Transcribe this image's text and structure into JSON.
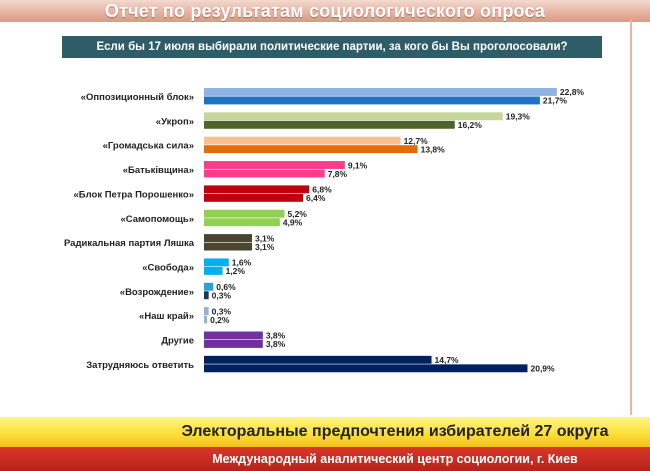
{
  "header": {
    "title": "Отчет по результатам социологического опроса",
    "question": "Если бы 17 июля выбирали политические партии, за кого бы Вы проголосовали?"
  },
  "footer": {
    "title": "Электоральные предпочтения избирателей 27 округа",
    "subtitle": "Международный аналитический центр социологии, г. Киев"
  },
  "chart_data": {
    "type": "bar",
    "orientation": "horizontal",
    "title": "Если бы 17 июля выбирали политические партии, за кого бы Вы проголосовали?",
    "xlim": [
      0,
      23
    ],
    "grid": false,
    "legend": "none",
    "unit": "%",
    "categories": [
      {
        "label": "«Оппозиционный блок»",
        "values": [
          22.8,
          21.7
        ],
        "value_labels": [
          "22,8%",
          "21,7%"
        ],
        "colors": [
          "#8fb4e3",
          "#1f73c4"
        ]
      },
      {
        "label": "«Укроп»",
        "values": [
          19.3,
          16.2
        ],
        "value_labels": [
          "19,3%",
          "16,2%"
        ],
        "colors": [
          "#c4d79b",
          "#4f6228"
        ]
      },
      {
        "label": "«Громадська сила»",
        "values": [
          12.7,
          13.8
        ],
        "value_labels": [
          "12,7%",
          "13,8%"
        ],
        "colors": [
          "#fac090",
          "#e46c0a"
        ]
      },
      {
        "label": "«Батьківщина»",
        "values": [
          9.1,
          7.8
        ],
        "value_labels": [
          "9,1%",
          "7,8%"
        ],
        "colors": [
          "#ff3b8d",
          "#ff3b8d"
        ]
      },
      {
        "label": "«Блок Петра Порошенко»",
        "values": [
          6.8,
          6.4
        ],
        "value_labels": [
          "6,8%",
          "6,4%"
        ],
        "colors": [
          "#c0000f",
          "#c0000f"
        ]
      },
      {
        "label": "«Самопомощь»",
        "values": [
          5.2,
          4.9
        ],
        "value_labels": [
          "5,2%",
          "4,9%"
        ],
        "colors": [
          "#92d050",
          "#92d050"
        ]
      },
      {
        "label": "Радикальная партия Ляшка",
        "values": [
          3.1,
          3.1
        ],
        "value_labels": [
          "3,1%",
          "3,1%"
        ],
        "colors": [
          "#4a4531",
          "#4a4531"
        ]
      },
      {
        "label": "«Свобода»",
        "values": [
          1.6,
          1.2
        ],
        "value_labels": [
          "1,6%",
          "1,2%"
        ],
        "colors": [
          "#00b0f0",
          "#00b0f0"
        ]
      },
      {
        "label": "«Возрождение»",
        "values": [
          0.6,
          0.3
        ],
        "value_labels": [
          "0,6%",
          "0,3%"
        ],
        "colors": [
          "#2e9fd8",
          "#17375e"
        ]
      },
      {
        "label": "«Наш край»",
        "values": [
          0.3,
          0.2
        ],
        "value_labels": [
          "0,3%",
          "0,2%"
        ],
        "colors": [
          "#95b3d7",
          "#95b3d7"
        ]
      },
      {
        "label": "Другие",
        "values": [
          3.8,
          3.8
        ],
        "value_labels": [
          "3,8%",
          "3,8%"
        ],
        "colors": [
          "#7030a0",
          "#7030a0"
        ]
      },
      {
        "label": "Затрудняюсь ответить",
        "values": [
          14.7,
          20.9
        ],
        "value_labels": [
          "14,7%",
          "20,9%"
        ],
        "colors": [
          "#002060",
          "#002060"
        ]
      }
    ]
  },
  "colors": {
    "banner": "#e7b3a3",
    "question_bar": "#2f5d67",
    "footer_yellow": "#fcdf3a",
    "footer_red": "#c0281e"
  }
}
